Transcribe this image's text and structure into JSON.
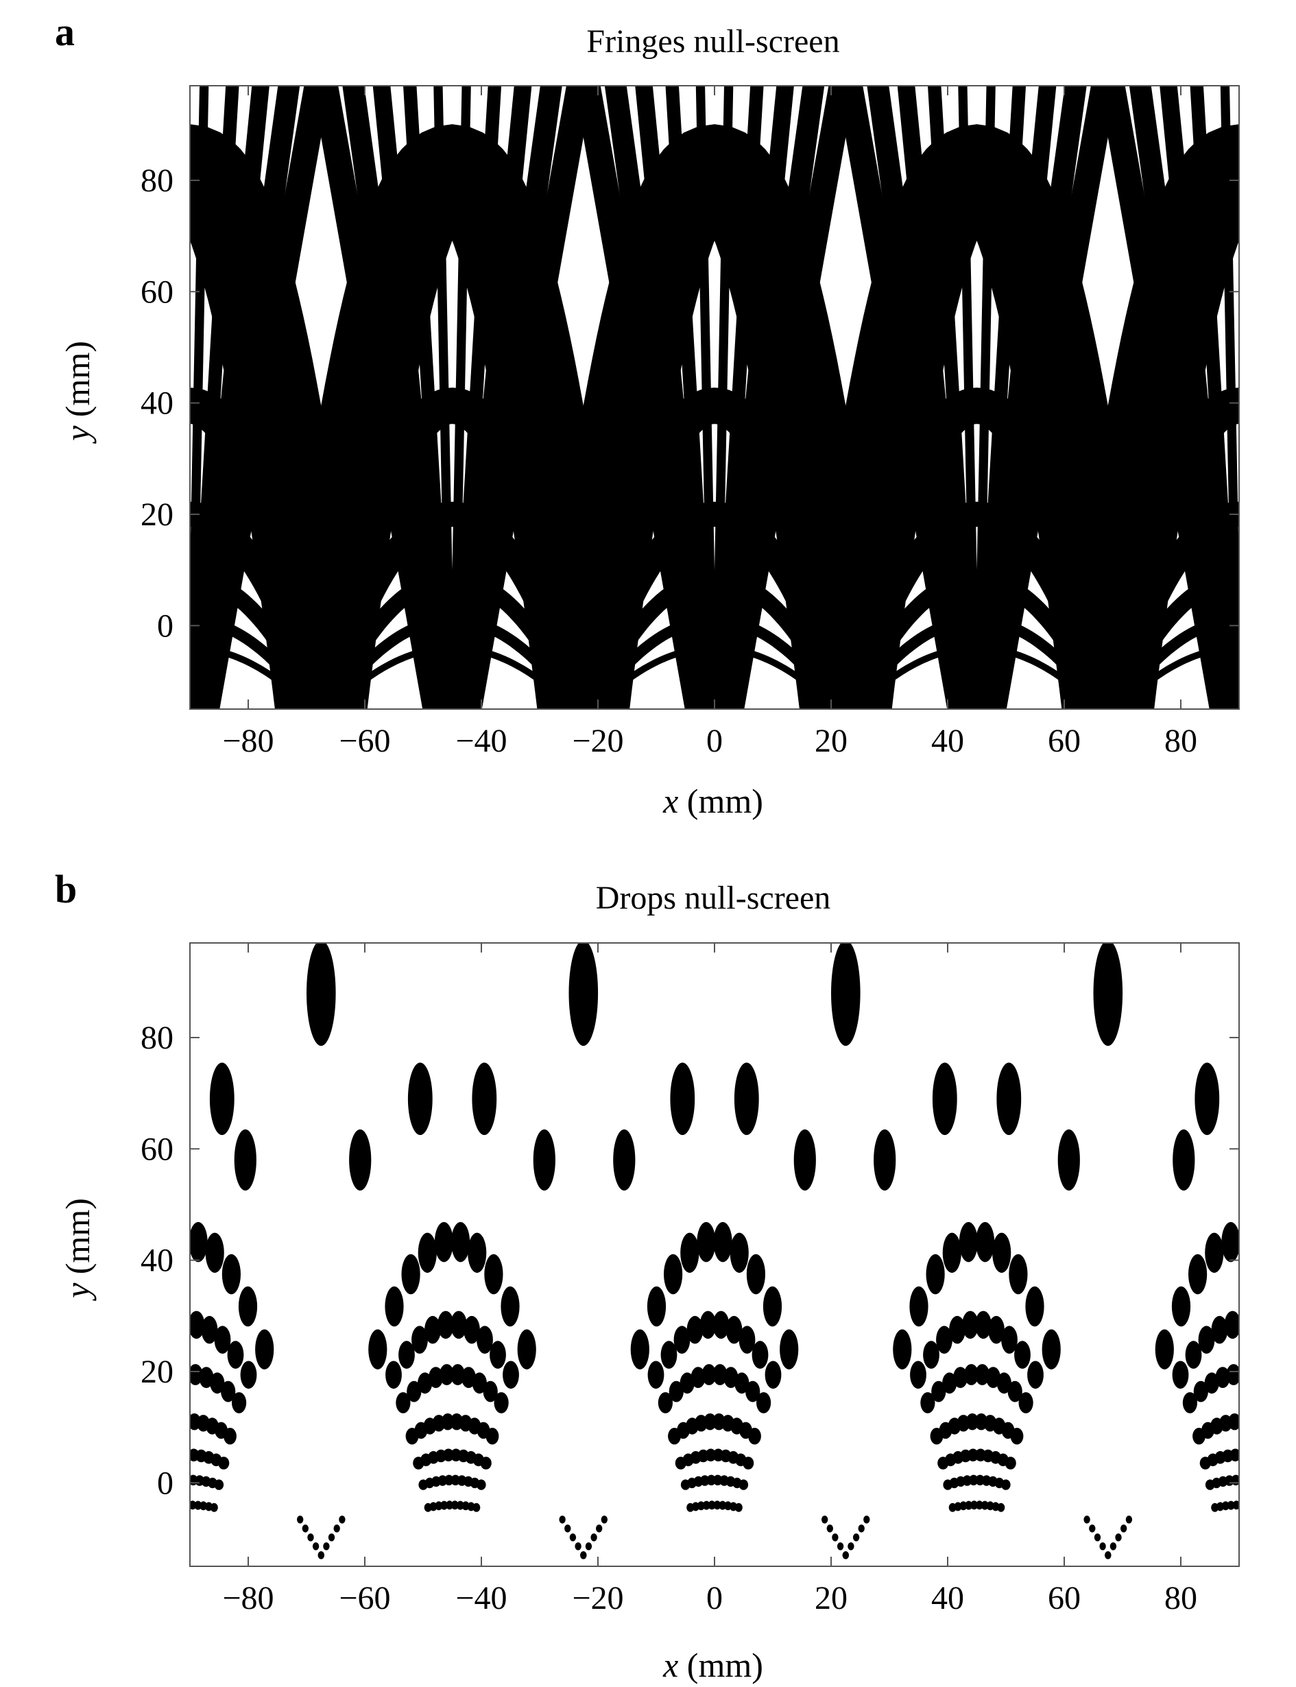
{
  "chart_data": [
    {
      "panel": "a",
      "type": "pattern",
      "title": "Fringes null-screen",
      "xlabel": {
        "var": "x",
        "unit": "(mm)"
      },
      "ylabel": {
        "var": "y",
        "unit": "(mm)"
      },
      "xlim": [
        -90,
        90
      ],
      "ylim": [
        -15,
        97
      ],
      "xticks": [
        -80,
        -60,
        -40,
        -20,
        0,
        20,
        40,
        60,
        80
      ],
      "yticks": [
        0,
        20,
        40,
        60,
        80
      ],
      "color": "#000000",
      "arch_centers": [
        -90,
        -45,
        0,
        45,
        90
      ],
      "arch_half_width": 22.5,
      "arcs": [
        {
          "y_top": -4,
          "width": 1.2
        },
        {
          "y_top": 1,
          "width": 2.0
        },
        {
          "y_top": 8.5,
          "width": 3.0
        },
        {
          "y_top": 20,
          "width": 4.5
        },
        {
          "y_top": 39.5,
          "width": 6.5
        },
        {
          "y_top": 82,
          "width": 16
        }
      ],
      "radial_offsets": [
        -18,
        -14,
        -10,
        -6,
        -2,
        2,
        6,
        10,
        14,
        18
      ]
    },
    {
      "panel": "b",
      "type": "pattern",
      "title": "Drops null-screen",
      "xlabel": {
        "var": "x",
        "unit": "(mm)"
      },
      "ylabel": {
        "var": "y",
        "unit": "(mm)"
      },
      "xlim": [
        -90,
        90
      ],
      "ylim": [
        -15,
        97
      ],
      "xticks": [
        -80,
        -60,
        -40,
        -20,
        0,
        20,
        40,
        60,
        80
      ],
      "yticks": [
        0,
        20,
        40,
        60,
        80
      ],
      "color": "#000000",
      "arch_centers": [
        -90,
        -45,
        0,
        45,
        90
      ],
      "arch_half_width": 22.5,
      "rows": [
        {
          "y_top": -4,
          "rx": 0.65,
          "ry": 0.8
        },
        {
          "y_top": 0.5,
          "rx": 0.8,
          "ry": 0.95
        },
        {
          "y_top": 5,
          "rx": 0.95,
          "ry": 1.15
        },
        {
          "y_top": 11,
          "rx": 1.1,
          "ry": 1.5
        },
        {
          "y_top": 19.5,
          "rx": 1.25,
          "ry": 1.9
        },
        {
          "y_top": 28.5,
          "rx": 1.4,
          "ry": 2.5
        },
        {
          "y_top": 43.5,
          "rx": 1.6,
          "ry": 3.6
        }
      ],
      "radial_offsets": [
        -18,
        -14,
        -10,
        -6,
        -2,
        2,
        6,
        10,
        14,
        18
      ],
      "top_drops": [
        {
          "x": -80.5,
          "y": 58,
          "rx": 1.9,
          "ry": 5.5
        },
        {
          "x": -60.8,
          "y": 58,
          "rx": 1.9,
          "ry": 5.5
        },
        {
          "x": -29.2,
          "y": 58,
          "rx": 1.9,
          "ry": 5.5
        },
        {
          "x": -15.5,
          "y": 58,
          "rx": 1.9,
          "ry": 5.5
        },
        {
          "x": 15.5,
          "y": 58,
          "rx": 1.9,
          "ry": 5.5
        },
        {
          "x": 29.2,
          "y": 58,
          "rx": 1.9,
          "ry": 5.5
        },
        {
          "x": 60.8,
          "y": 58,
          "rx": 1.9,
          "ry": 5.5
        },
        {
          "x": 80.5,
          "y": 58,
          "rx": 1.9,
          "ry": 5.5
        },
        {
          "x": -84.5,
          "y": 69,
          "rx": 2.1,
          "ry": 6.5
        },
        {
          "x": -50.5,
          "y": 69,
          "rx": 2.1,
          "ry": 6.5
        },
        {
          "x": -39.5,
          "y": 69,
          "rx": 2.1,
          "ry": 6.5
        },
        {
          "x": -5.5,
          "y": 69,
          "rx": 2.1,
          "ry": 6.5
        },
        {
          "x": 5.5,
          "y": 69,
          "rx": 2.1,
          "ry": 6.5
        },
        {
          "x": 39.5,
          "y": 69,
          "rx": 2.1,
          "ry": 6.5
        },
        {
          "x": 50.5,
          "y": 69,
          "rx": 2.1,
          "ry": 6.5
        },
        {
          "x": 84.5,
          "y": 69,
          "rx": 2.1,
          "ry": 6.5
        },
        {
          "x": -67.5,
          "y": 88,
          "rx": 2.5,
          "ry": 9.5
        },
        {
          "x": -22.5,
          "y": 88,
          "rx": 2.5,
          "ry": 9.5
        },
        {
          "x": 22.5,
          "y": 88,
          "rx": 2.5,
          "ry": 9.5
        },
        {
          "x": 67.5,
          "y": 88,
          "rx": 2.5,
          "ry": 9.5
        }
      ]
    }
  ]
}
